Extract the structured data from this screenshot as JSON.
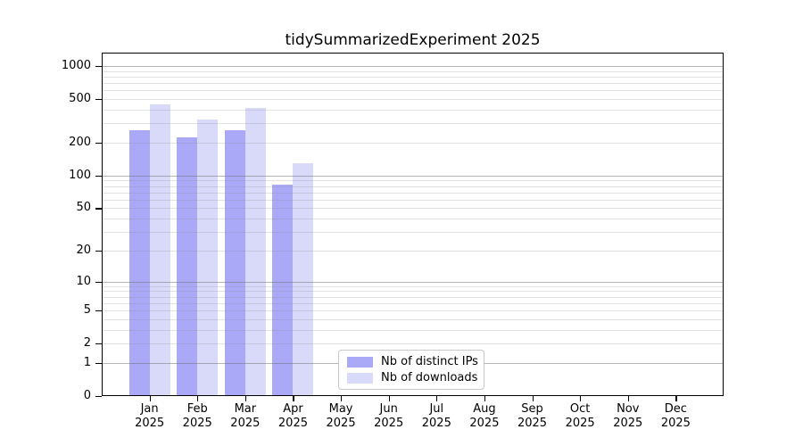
{
  "title": "tidySummarizedExperiment 2025",
  "colors": {
    "bar_distinct_ips": "#a9a9f8",
    "bar_downloads": "#d9d9f9",
    "axis": "#000000",
    "major_grid": "#b5b5b5",
    "minor_grid": "#e9e9e9",
    "legend_border": "#c8c8c8",
    "background": "#ffffff"
  },
  "y_axis": {
    "tick_values": [
      0,
      1,
      2,
      5,
      10,
      20,
      50,
      100,
      200,
      500,
      1000
    ]
  },
  "x_axis": {
    "year": "2025",
    "months": [
      "Jan",
      "Feb",
      "Mar",
      "Apr",
      "May",
      "Jun",
      "Jul",
      "Aug",
      "Sep",
      "Oct",
      "Nov",
      "Dec"
    ]
  },
  "legend": {
    "items": [
      {
        "label": "Nb of distinct IPs",
        "color": "#a9a9f8"
      },
      {
        "label": "Nb of downloads",
        "color": "#d9d9f9"
      }
    ]
  },
  "chart_data": {
    "type": "bar",
    "title": "tidySummarizedExperiment 2025",
    "categories": [
      "Jan 2025",
      "Feb 2025",
      "Mar 2025",
      "Apr 2025",
      "May 2025",
      "Jun 2025",
      "Jul 2025",
      "Aug 2025",
      "Sep 2025",
      "Oct 2025",
      "Nov 2025",
      "Dec 2025"
    ],
    "series": [
      {
        "name": "Nb of distinct IPs",
        "color": "#a9a9f8",
        "values": [
          260,
          224,
          260,
          83,
          null,
          null,
          null,
          null,
          null,
          null,
          null,
          null
        ]
      },
      {
        "name": "Nb of downloads",
        "color": "#d9d9f9",
        "values": [
          448,
          326,
          416,
          130,
          null,
          null,
          null,
          null,
          null,
          null,
          null,
          null
        ]
      }
    ],
    "yscale": "log10(1+x)",
    "ylim": [
      0,
      1000
    ],
    "y_ticks": [
      0,
      1,
      2,
      5,
      10,
      20,
      50,
      100,
      200,
      500,
      1000
    ],
    "grid": true,
    "gridlines_over_bars": true,
    "legend_position": "inside-bottom-center"
  }
}
